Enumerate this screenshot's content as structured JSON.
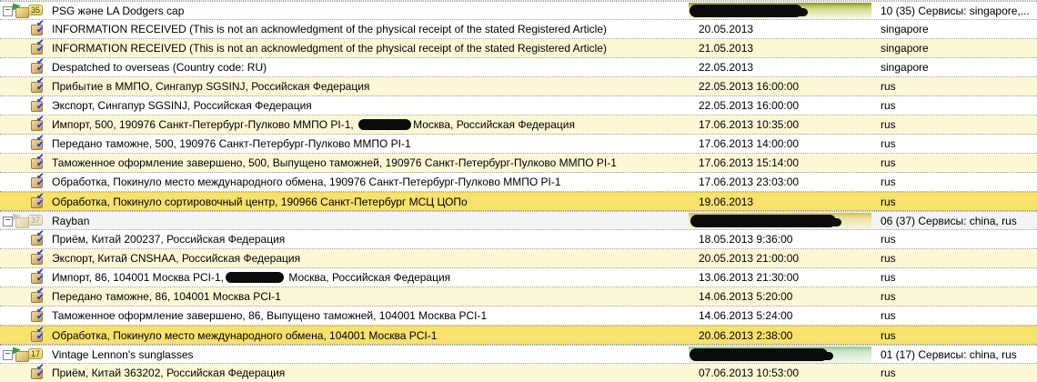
{
  "icons": {
    "expander_collapse": "−",
    "check": "✔"
  },
  "colors": {
    "row_cream": "#fcf8d6",
    "row_highlight": "#f9e16e",
    "group_bar_olive": "#8a9427",
    "group_bar_yellow": "#cdbf56",
    "group_bar_green": "#94c494",
    "check_blue": "#2c3fd2",
    "flag_green": "#33a133"
  },
  "rows": [
    {
      "type": "group",
      "title": "PSG және LA Dodgers cap",
      "badge": "35",
      "summary": "10 (35) Сервисы: singapore,..."
    },
    {
      "type": "event",
      "label": "INFORMATION RECEIVED (This is not an acknowledgment of the physical receipt of the stated Registered Article)",
      "date": "20.05.2013",
      "service": "singapore"
    },
    {
      "type": "event",
      "label": "INFORMATION RECEIVED (This is not an acknowledgment of the physical receipt of the stated Registered Article)",
      "date": "21.05.2013",
      "service": "singapore"
    },
    {
      "type": "event",
      "label": "Despatched to overseas (Country code: RU)",
      "date": "22.05.2013",
      "service": "singapore"
    },
    {
      "type": "event",
      "label": "Прибытие в ММПО, Сингапур SGSINJ, Российская Федерация",
      "date": "22.05.2013 16:00:00",
      "service": "rus"
    },
    {
      "type": "event",
      "label": "Экспорт, Сингапур SGSINJ, Российская Федерация",
      "date": "22.05.2013 16:00:00",
      "service": "rus"
    },
    {
      "type": "event",
      "label_pre": "Импорт, 500, 190976 Санкт-Петербург-Пулково ММПО PI-1, ",
      "label_post": "Москва, Российская Федерация",
      "date": "17.06.2013 10:35:00",
      "service": "rus"
    },
    {
      "type": "event",
      "label": "Передано таможне, 500, 190976 Санкт-Петербург-Пулково ММПО PI-1",
      "date": "17.06.2013 14:00:00",
      "service": "rus"
    },
    {
      "type": "event",
      "label": "Таможенное оформление завершено, 500, Выпущено таможней, 190976 Санкт-Петербург-Пулково ММПО PI-1",
      "date": "17.06.2013 15:14:00",
      "service": "rus"
    },
    {
      "type": "event",
      "label": "Обработка, Покинуло место международного обмена, 190976 Санкт-Петербург-Пулково ММПО PI-1",
      "date": "17.06.2013 23:03:00",
      "service": "rus"
    },
    {
      "type": "event",
      "label": "Обработка, Покинуло сортировочный центр, 190966 Санкт-Петербург МСЦ ЦОПо",
      "date": "19.06.2013",
      "service": "rus"
    },
    {
      "type": "group",
      "title": "Rayban",
      "badge": "37",
      "summary": "06 (37) Сервисы: china, rus"
    },
    {
      "type": "event",
      "label": "Приём, Китай 200237, Российская Федерация",
      "date": "18.05.2013 9:36:00",
      "service": "rus"
    },
    {
      "type": "event",
      "label": "Экспорт, Китай CNSHAA, Российская Федерация",
      "date": "20.05.2013 21:00:00",
      "service": "rus"
    },
    {
      "type": "event",
      "label_pre": "Импорт, 86, 104001 Москва PCI-1,",
      "label_post": " Москва, Российская Федерация",
      "date": "13.06.2013 21:30:00",
      "service": "rus"
    },
    {
      "type": "event",
      "label": "Передано таможне, 86, 104001 Москва PCI-1",
      "date": "14.06.2013 5:20:00",
      "service": "rus"
    },
    {
      "type": "event",
      "label": "Таможенное оформление завершено, 86, Выпущено таможней, 104001 Москва PCI-1",
      "date": "14.06.2013 5:24:00",
      "service": "rus"
    },
    {
      "type": "event",
      "label": "Обработка, Покинуло место международного обмена, 104001 Москва PCI-1",
      "date": "20.06.2013 2:38:00",
      "service": "rus"
    },
    {
      "type": "group",
      "title": "Vintage Lennon's sunglasses",
      "badge": "17",
      "summary": "01 (17) Сервисы: china, rus"
    },
    {
      "type": "event",
      "label": "Приём, Китай 363202, Российская Федерация",
      "date": "07.06.2013 10:53:00",
      "service": "rus"
    }
  ]
}
